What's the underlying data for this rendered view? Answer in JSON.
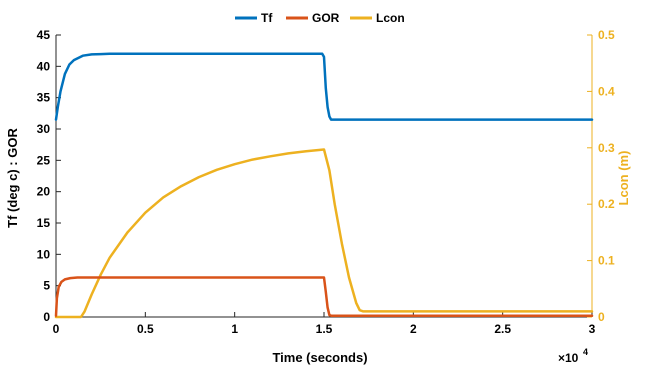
{
  "chart_data": {
    "type": "line",
    "xlabel": "Time (seconds)",
    "x_exponent_label": "×10",
    "x_exponent_power": "4",
    "ylabel_left": "Tf (deg c) : GOR",
    "ylabel_right": "Lcon (m)",
    "xlim": [
      0,
      30000
    ],
    "ylim_left": [
      0,
      45
    ],
    "ylim_right": [
      0,
      0.5
    ],
    "x_ticks": [
      0,
      5000,
      10000,
      15000,
      20000,
      25000,
      30000
    ],
    "x_tick_labels": [
      "0",
      "0.5",
      "1",
      "1.5",
      "2",
      "2.5",
      "3"
    ],
    "y_left_ticks": [
      0,
      5,
      10,
      15,
      20,
      25,
      30,
      35,
      40,
      45
    ],
    "y_left_tick_labels": [
      "0",
      "5",
      "10",
      "15",
      "20",
      "25",
      "30",
      "35",
      "40",
      "45"
    ],
    "y_right_ticks": [
      0,
      0.1,
      0.2,
      0.3,
      0.4,
      0.5
    ],
    "y_right_tick_labels": [
      "0",
      "0.1",
      "0.2",
      "0.3",
      "0.4",
      "0.5"
    ],
    "grid": false,
    "legend_position": "top-center",
    "colors": {
      "Tf": "#0072BD",
      "GOR": "#D95319",
      "Lcon": "#EDB120"
    },
    "series": [
      {
        "name": "Tf",
        "axis": "left",
        "x": [
          0,
          100,
          250,
          500,
          750,
          1000,
          1500,
          2000,
          2500,
          3000,
          5000,
          10000,
          14900,
          15000,
          15100,
          15200,
          15300,
          15400,
          20000,
          25000,
          30000
        ],
        "y": [
          31.5,
          33.5,
          36.0,
          38.8,
          40.3,
          41.0,
          41.7,
          41.9,
          41.95,
          42.0,
          42.0,
          42.0,
          42.0,
          41.5,
          36.5,
          33.5,
          32.0,
          31.5,
          31.5,
          31.5,
          31.5
        ]
      },
      {
        "name": "GOR",
        "axis": "left",
        "x": [
          0,
          50,
          150,
          300,
          500,
          800,
          1200,
          2000,
          5000,
          10000,
          15000,
          15100,
          15200,
          15300,
          15400,
          17000,
          20000,
          25000,
          30000
        ],
        "y": [
          0.2,
          3.0,
          4.8,
          5.6,
          6.0,
          6.2,
          6.3,
          6.3,
          6.3,
          6.3,
          6.3,
          4.0,
          1.5,
          0.3,
          0.2,
          0.2,
          0.2,
          0.2,
          0.2
        ],
        "y_scale": "left"
      },
      {
        "name": "Lcon",
        "axis": "right",
        "x": [
          0,
          1400,
          1600,
          2000,
          2500,
          3000,
          4000,
          5000,
          6000,
          7000,
          8000,
          9000,
          10000,
          11000,
          12000,
          13000,
          14000,
          15000,
          15300,
          15600,
          16000,
          16400,
          16800,
          17000,
          17200,
          20000,
          25000,
          30000
        ],
        "y": [
          0.0,
          0.0,
          0.01,
          0.04,
          0.075,
          0.105,
          0.15,
          0.185,
          0.212,
          0.232,
          0.248,
          0.261,
          0.271,
          0.279,
          0.285,
          0.29,
          0.294,
          0.297,
          0.26,
          0.2,
          0.13,
          0.07,
          0.025,
          0.012,
          0.01,
          0.01,
          0.01,
          0.01
        ]
      }
    ]
  }
}
